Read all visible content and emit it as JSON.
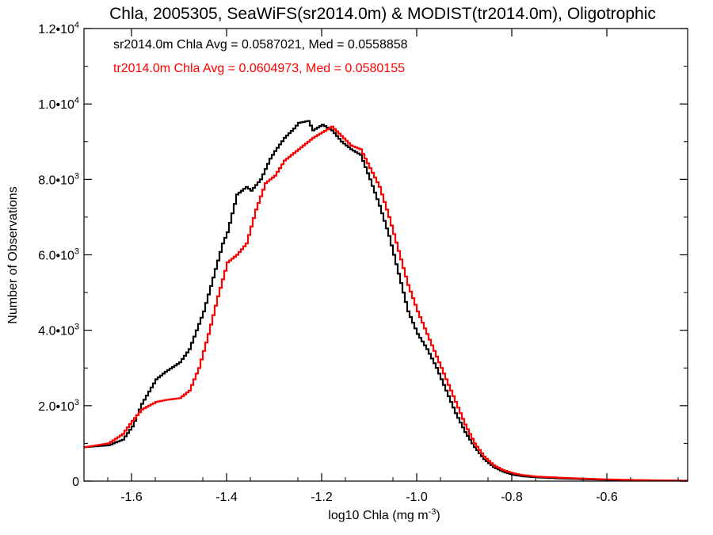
{
  "chart_data": {
    "type": "line",
    "step": true,
    "title": "Chla, 2005305, SeaWiFS(sr2014.0m) & MODIST(tr2014.0m), Oligotrophic",
    "xlabel": "log10 Chla (mg m",
    "xlabel_sup": "-3",
    "xlabel_end": ")",
    "ylabel": "Number of Observations",
    "xlim": [
      -1.7,
      -0.43
    ],
    "ylim": [
      0,
      12000
    ],
    "x_ticks": [
      {
        "value": -1.6,
        "label": "-1.6"
      },
      {
        "value": -1.4,
        "label": "-1.4"
      },
      {
        "value": -1.2,
        "label": "-1.2"
      },
      {
        "value": -1.0,
        "label": "-1.0"
      },
      {
        "value": -0.8,
        "label": "-0.8"
      },
      {
        "value": -0.6,
        "label": "-0.6"
      }
    ],
    "y_ticks": [
      {
        "value": 0,
        "mant": "0",
        "exp": ""
      },
      {
        "value": 2000,
        "mant": "2.0•10",
        "exp": "3"
      },
      {
        "value": 4000,
        "mant": "4.0•10",
        "exp": "3"
      },
      {
        "value": 6000,
        "mant": "6.0•10",
        "exp": "3"
      },
      {
        "value": 8000,
        "mant": "8.0•10",
        "exp": "3"
      },
      {
        "value": 10000,
        "mant": "1.0•10",
        "exp": "4"
      },
      {
        "value": 12000,
        "mant": "1.2•10",
        "exp": "4"
      }
    ],
    "annotations": [
      {
        "text": "sr2014.0m Chla Avg = 0.0587021, Med = 0.0558858",
        "color": "#000000"
      },
      {
        "text": "tr2014.0m Chla Avg = 0.0604973, Med = 0.0580155",
        "color": "#ff0000"
      }
    ],
    "series": [
      {
        "color": "#000000",
        "x": [
          -1.7,
          -1.65,
          -1.62,
          -1.6,
          -1.58,
          -1.55,
          -1.53,
          -1.5,
          -1.48,
          -1.45,
          -1.43,
          -1.41,
          -1.4,
          -1.38,
          -1.36,
          -1.35,
          -1.33,
          -1.31,
          -1.3,
          -1.28,
          -1.26,
          -1.25,
          -1.23,
          -1.22,
          -1.2,
          -1.18,
          -1.16,
          -1.14,
          -1.12,
          -1.1,
          -1.08,
          -1.06,
          -1.04,
          -1.02,
          -1.0,
          -0.98,
          -0.96,
          -0.94,
          -0.92,
          -0.9,
          -0.88,
          -0.86,
          -0.84,
          -0.82,
          -0.8,
          -0.78,
          -0.75,
          -0.7,
          -0.65,
          -0.6,
          -0.55,
          -0.5,
          -0.45,
          -0.43
        ],
        "y": [
          900,
          950,
          1100,
          1450,
          2050,
          2700,
          2900,
          3150,
          3500,
          4500,
          5400,
          6300,
          6600,
          7600,
          7800,
          7700,
          8000,
          8550,
          8750,
          9100,
          9350,
          9500,
          9550,
          9300,
          9450,
          9300,
          9000,
          8800,
          8650,
          8000,
          7300,
          6500,
          5500,
          4500,
          3900,
          3500,
          3000,
          2400,
          1800,
          1300,
          900,
          580,
          370,
          250,
          170,
          130,
          100,
          70,
          50,
          35,
          25,
          18,
          12,
          10
        ]
      },
      {
        "color": "#ff0000",
        "x": [
          -1.7,
          -1.65,
          -1.62,
          -1.6,
          -1.58,
          -1.55,
          -1.53,
          -1.5,
          -1.48,
          -1.46,
          -1.44,
          -1.42,
          -1.4,
          -1.38,
          -1.36,
          -1.34,
          -1.32,
          -1.3,
          -1.28,
          -1.26,
          -1.24,
          -1.22,
          -1.2,
          -1.18,
          -1.16,
          -1.14,
          -1.12,
          -1.1,
          -1.08,
          -1.06,
          -1.04,
          -1.02,
          -1.0,
          -0.98,
          -0.96,
          -0.94,
          -0.92,
          -0.9,
          -0.88,
          -0.86,
          -0.84,
          -0.82,
          -0.8,
          -0.78,
          -0.75,
          -0.7,
          -0.65,
          -0.6,
          -0.55,
          -0.5,
          -0.45,
          -0.43
        ],
        "y": [
          900,
          1000,
          1250,
          1600,
          1900,
          2100,
          2150,
          2200,
          2400,
          3000,
          3900,
          4900,
          5800,
          6000,
          6300,
          7200,
          7900,
          8100,
          8500,
          8700,
          8900,
          9100,
          9250,
          9400,
          9150,
          8900,
          8800,
          8300,
          7800,
          7000,
          6100,
          5200,
          4500,
          3900,
          3300,
          2700,
          2100,
          1500,
          1000,
          650,
          420,
          290,
          210,
          160,
          120,
          90,
          65,
          45,
          30,
          20,
          12,
          10
        ]
      }
    ]
  }
}
